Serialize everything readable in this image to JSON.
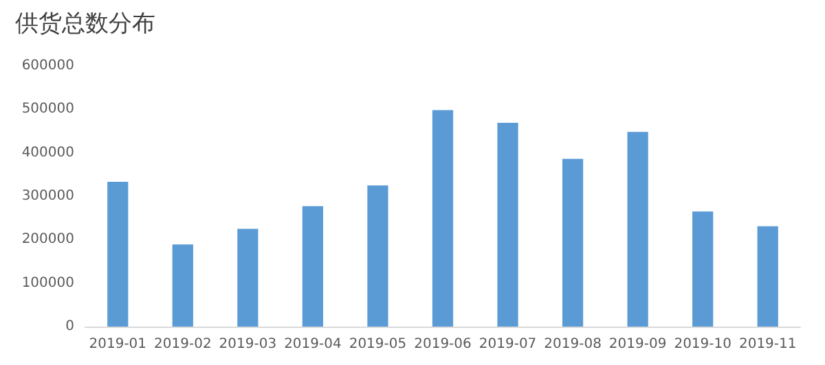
{
  "chart_data": {
    "type": "bar",
    "title": "供货总数分布",
    "categories": [
      "2019-01",
      "2019-02",
      "2019-03",
      "2019-04",
      "2019-05",
      "2019-06",
      "2019-07",
      "2019-08",
      "2019-09",
      "2019-10",
      "2019-11"
    ],
    "values": [
      333000,
      189000,
      225000,
      277000,
      325000,
      498000,
      469000,
      386000,
      448000,
      265000,
      231000
    ],
    "color": "#5b9bd5",
    "ylim": [
      0,
      600000
    ],
    "yticks": [
      0,
      100000,
      200000,
      300000,
      400000,
      500000,
      600000
    ],
    "grid": false
  }
}
